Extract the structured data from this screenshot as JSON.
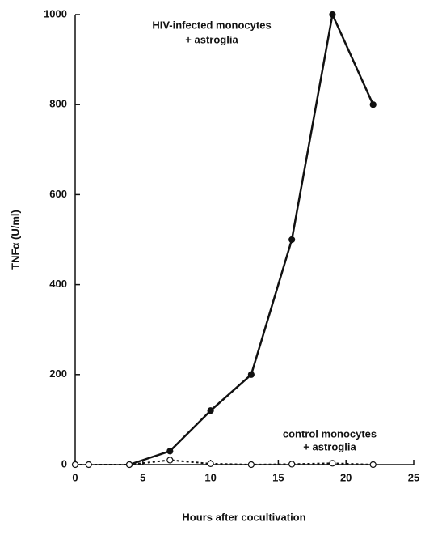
{
  "chart_data": {
    "type": "line",
    "xlabel": "Hours after cocultivation",
    "ylabel": "TNFα (U/ml)",
    "annotations": [
      {
        "lines": [
          "HIV-infected monocytes",
          "+ astroglia"
        ]
      },
      {
        "lines": [
          "control monocytes",
          "+ astroglia"
        ]
      }
    ],
    "series": [
      {
        "name": "HIV-infected monocytes + astroglia",
        "color": "#111111",
        "marker": "filled",
        "dashed": false,
        "x": [
          4,
          7,
          10,
          13,
          16,
          19,
          22
        ],
        "values": [
          0,
          30,
          120,
          200,
          500,
          1000,
          800
        ]
      },
      {
        "name": "control monocytes + astroglia",
        "color": "#111111",
        "marker": "open",
        "dashed": true,
        "x": [
          0,
          1,
          4,
          7,
          10,
          13,
          16,
          19,
          22
        ],
        "values": [
          0,
          0,
          0,
          10,
          2,
          0,
          1,
          3,
          0
        ]
      }
    ],
    "xlim": [
      0,
      25
    ],
    "xticks": [
      0,
      5,
      10,
      15,
      20,
      25
    ],
    "ylim": [
      0,
      1000
    ],
    "yticks": [
      0,
      200,
      400,
      600,
      800,
      1000
    ]
  }
}
